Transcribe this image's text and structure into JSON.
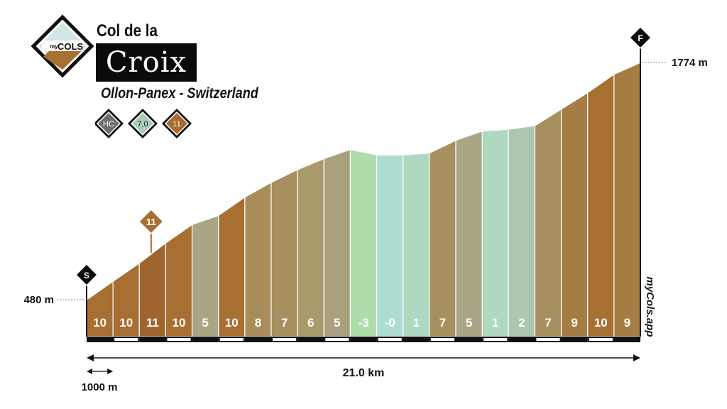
{
  "header": {
    "logo_top": "my",
    "logo_main": "COLS",
    "title_line1": "Col de la",
    "title_line2": "Croix",
    "subtitle": "Ollon-Panex - Switzerland",
    "badges": [
      {
        "label": "HC",
        "color": "#6e6e6e"
      },
      {
        "label": "7.0",
        "color": "#a9cdb9"
      },
      {
        "label": "11",
        "color": "#a86a2e"
      }
    ]
  },
  "chart_data": {
    "type": "area",
    "title": "Col de la Croix",
    "distance_label": "21.0 km",
    "scale_label": "1000 m",
    "start_marker": "S",
    "finish_marker": "F",
    "start_elevation_label": "480 m",
    "end_elevation_label": "1774 m",
    "max_gradient_marker": "11",
    "max_gradient_segment_index": 2,
    "watermark": "myCols.app",
    "x_km": [
      0,
      1,
      2,
      3,
      4,
      5,
      6,
      7,
      8,
      9,
      10,
      11,
      12,
      13,
      14,
      15,
      16,
      17,
      18,
      19,
      20,
      21
    ],
    "elevation_m": [
      480,
      580,
      680,
      790,
      890,
      940,
      1040,
      1120,
      1190,
      1250,
      1300,
      1270,
      1270,
      1280,
      1350,
      1400,
      1410,
      1430,
      1520,
      1610,
      1710,
      1774
    ],
    "gradients": [
      "10",
      "10",
      "11",
      "10",
      "5",
      "10",
      "8",
      "7",
      "6",
      "5",
      "-3",
      "-0",
      "1",
      "7",
      "5",
      "1",
      "2",
      "7",
      "9",
      "10",
      "9"
    ],
    "gradient_colors": [
      "#a86f32",
      "#a86f32",
      "#a0642e",
      "#a86f32",
      "#a9a685",
      "#a86f32",
      "#a88d5a",
      "#a69060",
      "#a99a6c",
      "#aaa07e",
      "#aedcaa",
      "#acdcd2",
      "#aed8c0",
      "#a69060",
      "#a9a685",
      "#aed8c0",
      "#abc7af",
      "#a69060",
      "#a57d43",
      "#a86f32",
      "#a57d43"
    ]
  }
}
